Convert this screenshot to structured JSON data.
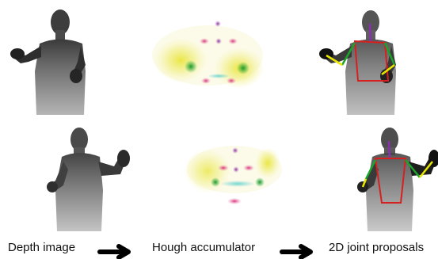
{
  "labels": {
    "depth": "Depth image",
    "hough": "Hough accumulator",
    "proposals": "2D joint proposals"
  },
  "colors": {
    "torso": "#d62020",
    "arm_left": "#1aa52a",
    "arm_right": "#1aa52a",
    "forearm": "#e8e800",
    "neck": "#8b2fb0",
    "accum_yellow": "#e6e21a",
    "accum_green": "#27a83a",
    "accum_pink": "#d81b6e",
    "accum_purple": "#8a2f9e",
    "accum_cyan": "#3fc7c7"
  },
  "icons": [
    "arrow-right-icon",
    "arrow-right-icon"
  ]
}
